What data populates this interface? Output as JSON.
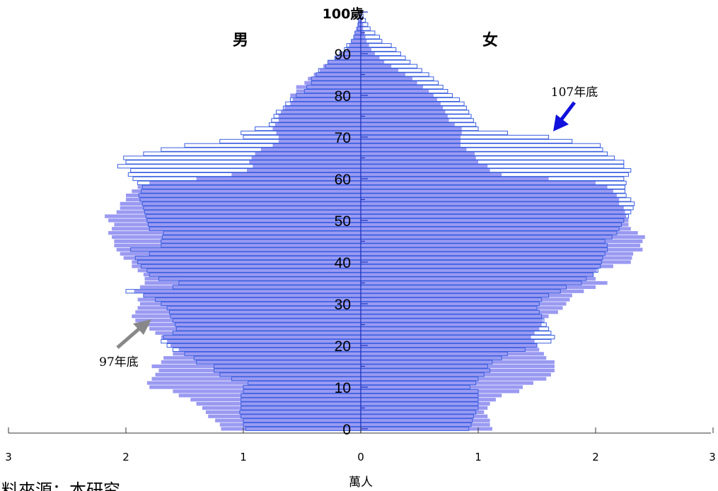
{
  "chart_data": {
    "type": "bar",
    "orientation": "population-pyramid",
    "top_age_label": "100歲",
    "male_label": "男",
    "female_label": "女",
    "xlabel": "萬人",
    "x_tick_labels": [
      "3",
      "2",
      "1",
      "0",
      "1",
      "2",
      "3"
    ],
    "x_range": [
      -3,
      3
    ],
    "age_tick_labels": [
      "0",
      "10",
      "20",
      "30",
      "40",
      "50",
      "60",
      "70",
      "80",
      "90"
    ],
    "age_range": [
      0,
      100
    ],
    "annotations": [
      {
        "text": "107年底",
        "arrow_color": "#1111dd"
      },
      {
        "text": "97年底",
        "arrow_color": "#888888"
      }
    ],
    "source_note": "料來源：本研究。",
    "series": [
      {
        "name": "97年底",
        "color": "#9a9af2",
        "ages": [
          0,
          1,
          2,
          3,
          4,
          5,
          6,
          7,
          8,
          9,
          10,
          11,
          12,
          13,
          14,
          15,
          16,
          17,
          18,
          19,
          20,
          21,
          22,
          23,
          24,
          25,
          26,
          27,
          28,
          29,
          30,
          31,
          32,
          33,
          34,
          35,
          36,
          37,
          38,
          39,
          40,
          41,
          42,
          43,
          44,
          45,
          46,
          47,
          48,
          49,
          50,
          51,
          52,
          53,
          54,
          55,
          56,
          57,
          58,
          59,
          60,
          61,
          62,
          63,
          64,
          65,
          66,
          67,
          68,
          69,
          70,
          71,
          72,
          73,
          74,
          75,
          76,
          77,
          78,
          79,
          80,
          81,
          82,
          83,
          84,
          85,
          86,
          87,
          88,
          89,
          90,
          91,
          92,
          93,
          94,
          95,
          96,
          97,
          98,
          99
        ],
        "male": [
          1.19,
          1.2,
          1.24,
          1.3,
          1.32,
          1.35,
          1.4,
          1.45,
          1.55,
          1.6,
          1.8,
          1.82,
          1.78,
          1.75,
          1.72,
          1.78,
          1.7,
          1.68,
          1.6,
          1.55,
          1.62,
          1.65,
          1.7,
          1.75,
          1.8,
          1.88,
          1.92,
          1.95,
          1.92,
          1.9,
          1.88,
          1.9,
          1.85,
          1.93,
          1.88,
          1.84,
          1.84,
          1.85,
          1.9,
          1.95,
          1.95,
          2.02,
          2.05,
          2.08,
          2.1,
          2.1,
          2.12,
          2.15,
          2.12,
          2.1,
          2.15,
          2.18,
          2.08,
          2.05,
          2.05,
          2.0,
          2.0,
          1.95,
          1.9,
          1.8,
          1.4,
          1.1,
          0.97,
          0.92,
          0.95,
          0.93,
          0.9,
          0.85,
          0.75,
          0.7,
          0.7,
          0.72,
          0.75,
          0.73,
          0.7,
          0.7,
          0.68,
          0.65,
          0.6,
          0.58,
          0.6,
          0.55,
          0.55,
          0.48,
          0.45,
          0.4,
          0.35,
          0.32,
          0.28,
          0.22,
          0.16,
          0.12,
          0.1,
          0.08,
          0.06,
          0.05,
          0.04,
          0.03,
          0.02,
          0.01
        ],
        "female": [
          1.12,
          1.1,
          1.1,
          1.08,
          1.05,
          1.08,
          1.1,
          1.15,
          1.2,
          1.35,
          1.38,
          1.47,
          1.58,
          1.62,
          1.65,
          1.65,
          1.65,
          1.58,
          1.56,
          1.52,
          1.5,
          1.48,
          1.45,
          1.48,
          1.52,
          1.54,
          1.55,
          1.6,
          1.68,
          1.72,
          1.75,
          1.78,
          1.8,
          1.9,
          2.0,
          2.1,
          2.0,
          1.98,
          2.01,
          2.15,
          2.3,
          2.31,
          2.32,
          2.4,
          2.38,
          2.4,
          2.42,
          2.36,
          2.3,
          2.28,
          2.28,
          2.26,
          2.25,
          2.24,
          2.2,
          2.2,
          2.18,
          2.15,
          2.1,
          2.0,
          1.6,
          1.2,
          1.1,
          1.08,
          1.0,
          0.98,
          0.97,
          0.9,
          0.85,
          0.85,
          0.85,
          0.86,
          0.86,
          0.8,
          0.75,
          0.74,
          0.72,
          0.7,
          0.68,
          0.65,
          0.62,
          0.58,
          0.53,
          0.48,
          0.44,
          0.38,
          0.32,
          0.26,
          0.2,
          0.16,
          0.12,
          0.09,
          0.07,
          0.05,
          0.04,
          0.03,
          0.02,
          0.02,
          0.01,
          0.01
        ]
      },
      {
        "name": "107年底",
        "color": "#3a5fe0",
        "ages": [
          0,
          1,
          2,
          3,
          4,
          5,
          6,
          7,
          8,
          9,
          10,
          11,
          12,
          13,
          14,
          15,
          16,
          17,
          18,
          19,
          20,
          21,
          22,
          23,
          24,
          25,
          26,
          27,
          28,
          29,
          30,
          31,
          32,
          33,
          34,
          35,
          36,
          37,
          38,
          39,
          40,
          41,
          42,
          43,
          44,
          45,
          46,
          47,
          48,
          49,
          50,
          51,
          52,
          53,
          54,
          55,
          56,
          57,
          58,
          59,
          60,
          61,
          62,
          63,
          64,
          65,
          66,
          67,
          68,
          69,
          70,
          71,
          72,
          73,
          74,
          75,
          76,
          77,
          78,
          79,
          80,
          81,
          82,
          83,
          84,
          85,
          86,
          87,
          88,
          89,
          90,
          91,
          92,
          93,
          94,
          95,
          96,
          97,
          98,
          99
        ],
        "male": [
          0.98,
          1.0,
          1.0,
          1.02,
          1.03,
          1.02,
          1.02,
          1.02,
          1.02,
          1.0,
          1.0,
          0.96,
          1.1,
          1.2,
          1.25,
          1.25,
          1.4,
          1.42,
          1.5,
          1.6,
          1.65,
          1.7,
          1.68,
          1.6,
          1.57,
          1.58,
          1.6,
          1.62,
          1.63,
          1.65,
          1.7,
          1.75,
          1.85,
          2.0,
          1.6,
          1.55,
          1.72,
          1.8,
          1.82,
          1.87,
          1.9,
          1.92,
          1.8,
          1.96,
          1.7,
          1.7,
          1.69,
          1.68,
          1.8,
          1.81,
          1.82,
          1.83,
          1.84,
          1.85,
          1.86,
          1.88,
          1.89,
          1.87,
          1.86,
          1.9,
          1.94,
          1.98,
          1.96,
          2.07,
          2.0,
          2.02,
          1.85,
          1.7,
          1.5,
          1.2,
          1.0,
          1.02,
          0.9,
          0.78,
          0.76,
          0.74,
          0.72,
          0.66,
          0.64,
          0.6,
          0.55,
          0.48,
          0.46,
          0.42,
          0.42,
          0.38,
          0.36,
          0.3,
          0.28,
          0.22,
          0.18,
          0.14,
          0.12,
          0.08,
          0.06,
          0.05,
          0.03,
          0.02,
          0.02,
          0.01
        ],
        "female": [
          0.92,
          0.94,
          0.95,
          0.96,
          0.98,
          1.0,
          1.0,
          1.0,
          1.0,
          1.0,
          0.93,
          0.98,
          1.0,
          1.05,
          1.1,
          1.08,
          1.12,
          1.2,
          1.25,
          1.4,
          1.5,
          1.62,
          1.65,
          1.62,
          1.6,
          1.58,
          1.56,
          1.54,
          1.52,
          1.5,
          1.52,
          1.54,
          1.6,
          1.7,
          1.75,
          1.88,
          1.92,
          1.98,
          2.02,
          2.04,
          2.05,
          2.06,
          2.08,
          2.1,
          2.1,
          2.08,
          2.14,
          2.18,
          2.2,
          2.22,
          2.24,
          2.28,
          2.3,
          2.32,
          2.33,
          2.3,
          2.26,
          2.25,
          2.25,
          2.26,
          2.24,
          2.28,
          2.3,
          2.24,
          2.24,
          2.16,
          2.1,
          2.06,
          2.04,
          1.8,
          1.6,
          1.25,
          1.0,
          0.98,
          0.96,
          0.94,
          0.92,
          0.9,
          0.88,
          0.84,
          0.78,
          0.74,
          0.7,
          0.66,
          0.62,
          0.58,
          0.52,
          0.48,
          0.42,
          0.38,
          0.34,
          0.3,
          0.26,
          0.18,
          0.16,
          0.12,
          0.08,
          0.06,
          0.04,
          0.02
        ]
      }
    ]
  }
}
